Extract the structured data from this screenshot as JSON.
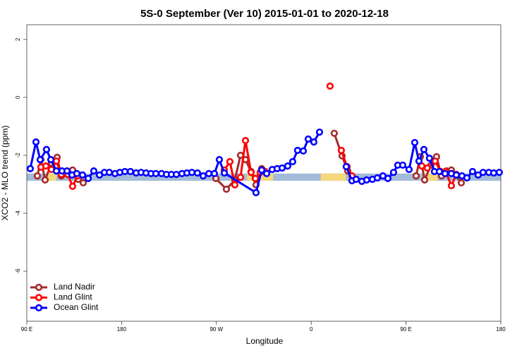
{
  "chart_data": {
    "type": "line",
    "title": "5S-0 September (Ver 10)   2015-01-01 to 2020-12-18",
    "x_label": "Longitude",
    "y_label": "XCO2 - MLO trend (ppm)",
    "xlim": [
      90,
      540
    ],
    "ylim": [
      -7.73,
      2.51
    ],
    "xticks": [
      {
        "value": 90,
        "label": "90 E"
      },
      180,
      {
        "value": 270,
        "label": "90 W"
      },
      {
        "value": 360,
        "label": "0"
      },
      {
        "value": 450,
        "label": "90 E"
      },
      {
        "value": 540,
        "label": "180"
      }
    ],
    "yticks": [
      2,
      0,
      -2,
      -4,
      -6
    ],
    "legend": "bottom-left",
    "band": {
      "range": [
        -2.63,
        -2.88
      ],
      "color": "#a3bbd9",
      "highlight_color": "#f5d77c",
      "highlights": [
        [
          109,
          118
        ],
        [
          299,
          324
        ],
        [
          369,
          393
        ],
        [
          466,
          480
        ]
      ]
    },
    "series": [
      {
        "name": "Land Nadir",
        "color": "#a52a2a",
        "x": [
          100.0,
          103.4,
          107.4,
          113.4,
          118.8,
          122.8,
          128.2,
          133.5,
          138.9,
          143.6,
          null,
          269.5,
          279.5,
          287.5,
          292.9,
          297.6,
          302.9,
          307.6,
          313.0,
          null,
          381.9,
          389.3,
          394.7,
          null,
          459.6,
          463.6,
          467.7,
          473.7,
          479.0,
          483.7,
          488.4,
          493.1,
          502.5
        ],
        "values": [
          -2.71,
          -2.15,
          -2.85,
          -2.27,
          -2.07,
          -2.71,
          -2.59,
          -2.51,
          -2.83,
          -2.95,
          null,
          -2.8,
          -3.17,
          -2.85,
          -2.0,
          -2.15,
          -2.56,
          -3.02,
          -2.46,
          null,
          -1.24,
          -2.02,
          -2.54,
          null,
          -2.71,
          -2.05,
          -2.85,
          -2.34,
          -2.05,
          -2.71,
          -2.54,
          -2.51,
          -2.95
        ]
      },
      {
        "name": "Land Glint",
        "color": "#ff0000",
        "x": [
          103.4,
          108.1,
          113.4,
          118.1,
          122.8,
          128.8,
          133.5,
          138.2,
          null,
          277.5,
          282.8,
          287.5,
          292.9,
          297.6,
          302.9,
          307.0,
          311.6,
          316.3,
          null,
          377.9,
          null,
          388.6,
          394.0,
          398.7,
          null,
          465.0,
          470.3,
          477.7,
          483.0,
          487.7,
          493.1,
          497.8
        ],
        "values": [
          -2.41,
          -2.37,
          -2.49,
          -2.2,
          -2.66,
          -2.66,
          -3.07,
          -2.71,
          null,
          -2.51,
          -2.22,
          -3.02,
          -2.76,
          -1.49,
          -2.59,
          -2.8,
          -2.59,
          -2.56,
          null,
          0.39,
          null,
          -1.83,
          -2.39,
          -2.71,
          null,
          -2.37,
          -2.44,
          -2.2,
          -2.56,
          -2.56,
          -3.05,
          -2.66
        ]
      },
      {
        "name": "Ocean Glint",
        "color": "#0000ff",
        "x": [
          93.3,
          98.7,
          102.7,
          108.7,
          112.8,
          118.1,
          123.5,
          128.2,
          132.9,
          137.5,
          142.9,
          148.3,
          153.6,
          159.0,
          163.7,
          168.3,
          173.7,
          178.4,
          183.1,
          188.4,
          193.8,
          198.5,
          203.2,
          207.9,
          212.5,
          217.9,
          222.6,
          227.3,
          232.0,
          237.3,
          242.0,
          246.7,
          252.0,
          257.4,
          262.8,
          268.1,
          272.8,
          277.5,
          307.6,
          313.0,
          317.7,
          323.0,
          327.7,
          332.4,
          337.7,
          342.4,
          347.1,
          352.5,
          357.2,
          362.5,
          367.9,
          null,
          393.3,
          398.7,
          402.7,
          408.1,
          412.7,
          418.1,
          422.8,
          428.1,
          432.8,
          438.2,
          442.2,
          446.9,
          452.9,
          458.3,
          462.3,
          467.0,
          472.3,
          477.0,
          481.7,
          487.1,
          493.1,
          497.8,
          503.1,
          507.8,
          513.2,
          518.5,
          523.2,
          528.6,
          533.3,
          538.6
        ],
        "values": [
          -2.46,
          -1.54,
          -2.15,
          -1.8,
          -2.15,
          -2.54,
          -2.54,
          -2.54,
          -2.68,
          -2.63,
          -2.68,
          -2.8,
          -2.54,
          -2.68,
          -2.59,
          -2.59,
          -2.63,
          -2.59,
          -2.56,
          -2.56,
          -2.61,
          -2.59,
          -2.61,
          -2.63,
          -2.63,
          -2.63,
          -2.66,
          -2.66,
          -2.66,
          -2.63,
          -2.61,
          -2.59,
          -2.61,
          -2.71,
          -2.63,
          -2.63,
          -2.15,
          -2.61,
          -3.29,
          -2.51,
          -2.63,
          -2.49,
          -2.46,
          -2.44,
          -2.37,
          -2.22,
          -1.83,
          -1.85,
          -1.44,
          -1.54,
          -1.2,
          null,
          -2.39,
          -2.88,
          -2.83,
          -2.9,
          -2.85,
          -2.83,
          -2.78,
          -2.71,
          -2.8,
          -2.59,
          -2.34,
          -2.34,
          -2.49,
          -1.56,
          -2.2,
          -1.8,
          -2.1,
          -2.56,
          -2.56,
          -2.63,
          -2.63,
          -2.68,
          -2.71,
          -2.78,
          -2.56,
          -2.68,
          -2.59,
          -2.59,
          -2.61,
          -2.59
        ]
      }
    ]
  }
}
